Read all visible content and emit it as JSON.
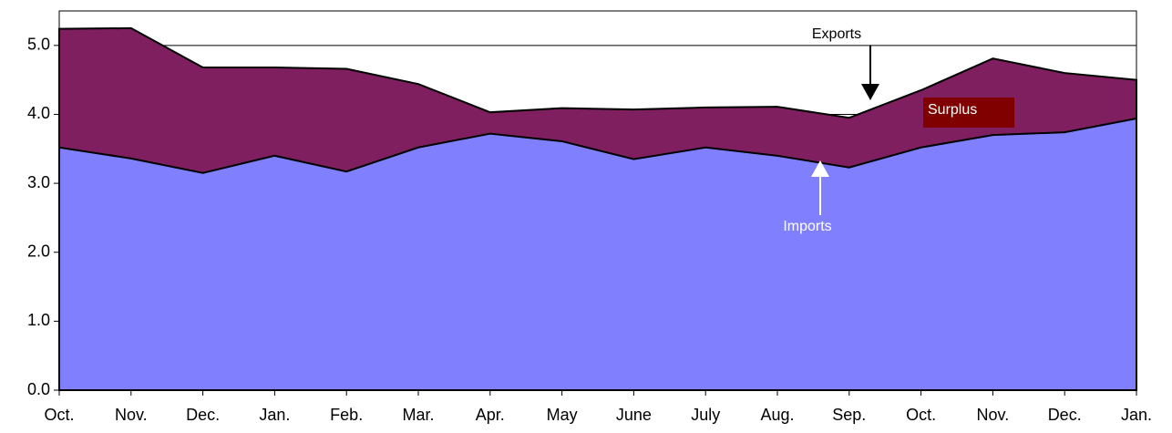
{
  "chart_data": {
    "type": "area",
    "categories": [
      "Oct.",
      "Nov.",
      "Dec.",
      "Jan.",
      "Feb.",
      "Mar.",
      "Apr.",
      "May",
      "June",
      "July",
      "Aug.",
      "Sep.",
      "Oct.",
      "Nov.",
      "Dec.",
      "Jan."
    ],
    "series": [
      {
        "name": "Exports",
        "color": "#7f1f5f",
        "values": [
          5.24,
          5.25,
          4.68,
          4.68,
          4.66,
          4.44,
          4.03,
          4.09,
          4.07,
          4.1,
          4.11,
          3.95,
          4.35,
          4.81,
          4.6,
          4.5
        ]
      },
      {
        "name": "Imports",
        "color": "#8080ff",
        "values": [
          3.52,
          3.36,
          3.15,
          3.4,
          3.17,
          3.52,
          3.72,
          3.61,
          3.35,
          3.52,
          3.4,
          3.23,
          3.52,
          3.7,
          3.74,
          3.94
        ]
      }
    ],
    "annotations": [
      "Exports",
      "Surplus",
      "Imports"
    ],
    "surplus_color": "#800000",
    "ylim": [
      0,
      5.5
    ],
    "yticks": [
      {
        "value": 0,
        "label": "0.0"
      },
      {
        "value": 1,
        "label": "1.0"
      },
      {
        "value": 2,
        "label": "2.0"
      },
      {
        "value": 3,
        "label": "3.0"
      },
      {
        "value": 4,
        "label": "4.0"
      },
      {
        "value": 5,
        "label": "5.0"
      }
    ],
    "grid": true
  }
}
